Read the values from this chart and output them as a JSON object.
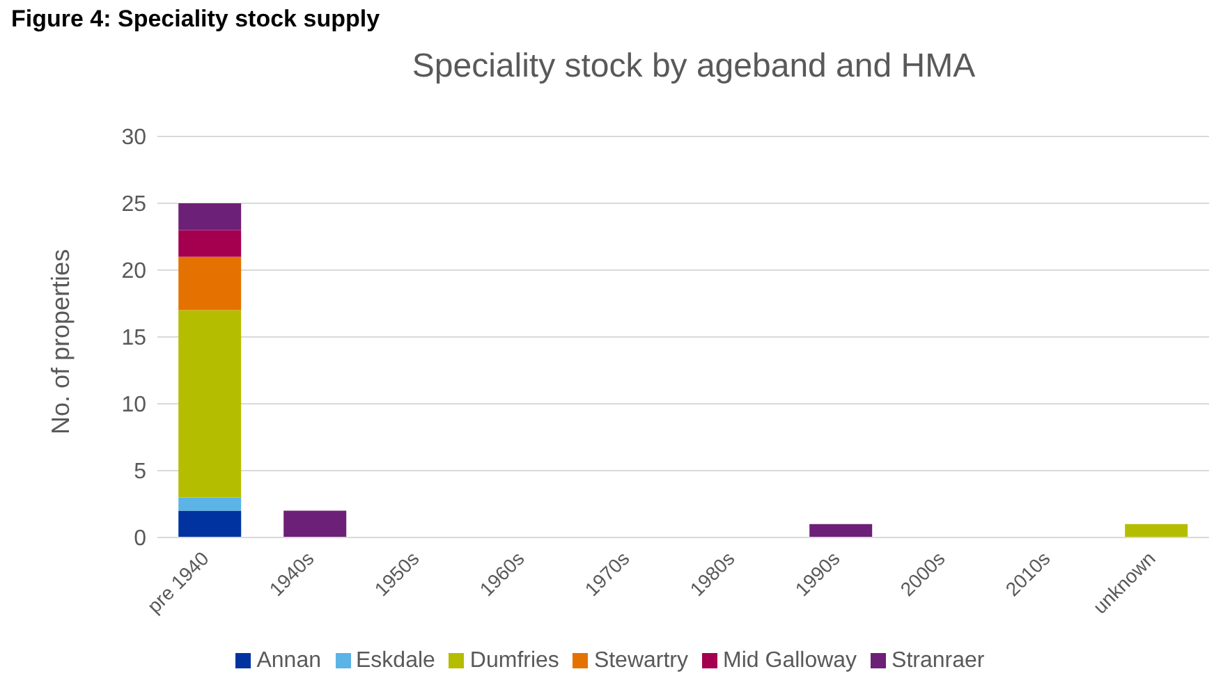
{
  "chart_data": {
    "type": "bar",
    "title": "Speciality stock by ageband and HMA",
    "ylabel": "No. of properties",
    "annotations": [
      "Figure 4: Speciality stock supply"
    ],
    "categories": [
      "pre 1940",
      "1940s",
      "1950s",
      "1960s",
      "1970s",
      "1980s",
      "1990s",
      "2000s",
      "2010s",
      "unknown"
    ],
    "stacked": true,
    "ylim": [
      0,
      30
    ],
    "yticks": [
      0,
      5,
      10,
      15,
      20,
      25,
      30
    ],
    "grid": "y",
    "legend": "bottom",
    "series": [
      {
        "name": "Annan",
        "color": "#0033a0",
        "values": [
          2,
          0,
          0,
          0,
          0,
          0,
          0,
          0,
          0,
          0
        ]
      },
      {
        "name": "Eskdale",
        "color": "#5bb4e5",
        "values": [
          1,
          0,
          0,
          0,
          0,
          0,
          0,
          0,
          0,
          0
        ]
      },
      {
        "name": "Dumfries",
        "color": "#b5bd00",
        "values": [
          14,
          0,
          0,
          0,
          0,
          0,
          0,
          0,
          0,
          1
        ]
      },
      {
        "name": "Stewartry",
        "color": "#e57200",
        "values": [
          4,
          0,
          0,
          0,
          0,
          0,
          0,
          0,
          0,
          0
        ]
      },
      {
        "name": "Mid Galloway",
        "color": "#a50050",
        "values": [
          2,
          0,
          0,
          0,
          0,
          0,
          0,
          0,
          0,
          0
        ]
      },
      {
        "name": "Stranraer",
        "color": "#6d2077",
        "values": [
          2,
          2,
          0,
          0,
          0,
          0,
          1,
          0,
          0,
          0
        ]
      }
    ]
  }
}
